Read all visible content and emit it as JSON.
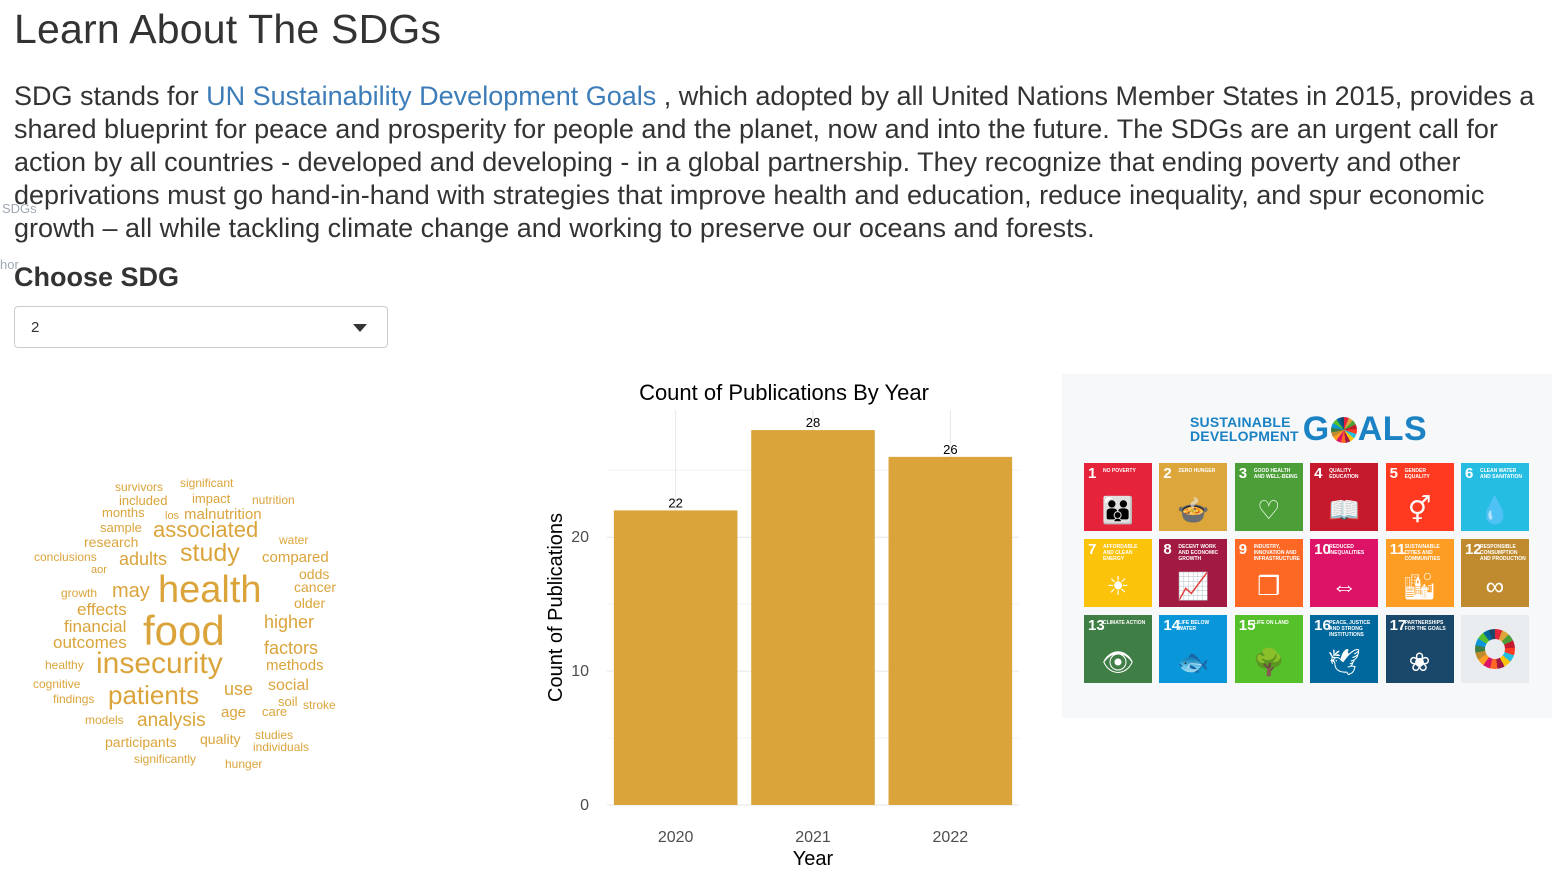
{
  "page": {
    "title": "Learn About The SDGs",
    "intro_prefix": "SDG stands for ",
    "intro_link": "UN Sustainability Development Goals",
    "intro_rest": " , which adopted by all United Nations Member States in 2015, provides a shared blueprint for peace and prosperity for people and the planet, now and into the future. The SDGs are an urgent call for action by all countries - developed and developing - in a global partnership. They recognize that ending poverty and other deprivations must go hand-in-hand with strategies that improve health and education, reduce inequality, and spur economic growth – all while tackling climate change and working to preserve our oceans and forests.",
    "ghost_text_1": "SDGs",
    "ghost_text_2": "hor"
  },
  "control": {
    "label": "Choose SDG",
    "selected": "2"
  },
  "wordcloud": {
    "color": "#dba43b",
    "words": [
      {
        "text": "food",
        "weight": 42
      },
      {
        "text": "health",
        "weight": 38
      },
      {
        "text": "insecurity",
        "weight": 30
      },
      {
        "text": "patients",
        "weight": 26
      },
      {
        "text": "study",
        "weight": 25
      },
      {
        "text": "associated",
        "weight": 22
      },
      {
        "text": "may",
        "weight": 20
      },
      {
        "text": "analysis",
        "weight": 19
      },
      {
        "text": "adults",
        "weight": 18
      },
      {
        "text": "factors",
        "weight": 18
      },
      {
        "text": "higher",
        "weight": 18
      },
      {
        "text": "use",
        "weight": 18
      },
      {
        "text": "financial",
        "weight": 17
      },
      {
        "text": "outcomes",
        "weight": 17
      },
      {
        "text": "effects",
        "weight": 17
      },
      {
        "text": "social",
        "weight": 16
      },
      {
        "text": "malnutrition",
        "weight": 15
      },
      {
        "text": "methods",
        "weight": 15
      },
      {
        "text": "compared",
        "weight": 15
      },
      {
        "text": "older",
        "weight": 14
      },
      {
        "text": "cancer",
        "weight": 14
      },
      {
        "text": "odds",
        "weight": 14
      },
      {
        "text": "participants",
        "weight": 14
      },
      {
        "text": "quality",
        "weight": 14
      },
      {
        "text": "age",
        "weight": 15
      },
      {
        "text": "care",
        "weight": 13
      },
      {
        "text": "soil",
        "weight": 13
      },
      {
        "text": "research",
        "weight": 14
      },
      {
        "text": "sample",
        "weight": 13
      },
      {
        "text": "impact",
        "weight": 13
      },
      {
        "text": "months",
        "weight": 13
      },
      {
        "text": "included",
        "weight": 13
      },
      {
        "text": "survivors",
        "weight": 12
      },
      {
        "text": "significant",
        "weight": 12
      },
      {
        "text": "nutrition",
        "weight": 12
      },
      {
        "text": "water",
        "weight": 12
      },
      {
        "text": "conclusions",
        "weight": 12
      },
      {
        "text": "aor",
        "weight": 11
      },
      {
        "text": "growth",
        "weight": 12
      },
      {
        "text": "healthy",
        "weight": 12
      },
      {
        "text": "cognitive",
        "weight": 12
      },
      {
        "text": "findings",
        "weight": 12
      },
      {
        "text": "models",
        "weight": 12
      },
      {
        "text": "studies",
        "weight": 12
      },
      {
        "text": "individuals",
        "weight": 12
      },
      {
        "text": "stroke",
        "weight": 12
      },
      {
        "text": "significantly",
        "weight": 12
      },
      {
        "text": "hunger",
        "weight": 12
      },
      {
        "text": "los",
        "weight": 11
      }
    ]
  },
  "chart_data": {
    "type": "bar",
    "title": "Count of Publications By Year",
    "xlabel": "Year",
    "ylabel": "Count of Publications",
    "categories": [
      "2020",
      "2021",
      "2022"
    ],
    "values": [
      22,
      28,
      26
    ],
    "data_labels": [
      "22",
      "28",
      "26"
    ],
    "ylim": [
      0,
      29.5
    ],
    "y_ticks": [
      0,
      10,
      20
    ],
    "grid": true,
    "bar_color": "#dba43b"
  },
  "sdg_panel": {
    "logo_small_line1": "SUSTAINABLE",
    "logo_small_line2": "DEVELOPMENT",
    "logo_big_pre": "G",
    "logo_big_post": "ALS",
    "goals": [
      {
        "num": "1",
        "label": "No poverty",
        "color": "#e5243b",
        "icon": "family-icon",
        "glyph": "👪"
      },
      {
        "num": "2",
        "label": "Zero hunger",
        "color": "#dda63a",
        "icon": "bowl-icon",
        "glyph": "🍲"
      },
      {
        "num": "3",
        "label": "Good health and well-being",
        "color": "#4c9f38",
        "icon": "heartbeat-icon",
        "glyph": "♡"
      },
      {
        "num": "4",
        "label": "Quality education",
        "color": "#c5192d",
        "icon": "book-icon",
        "glyph": "📖"
      },
      {
        "num": "5",
        "label": "Gender equality",
        "color": "#ff3a21",
        "icon": "gender-icon",
        "glyph": "⚥"
      },
      {
        "num": "6",
        "label": "Clean water and sanitation",
        "color": "#26bde2",
        "icon": "water-drop-icon",
        "glyph": "💧"
      },
      {
        "num": "7",
        "label": "Affordable and clean energy",
        "color": "#fcc30b",
        "icon": "sun-icon",
        "glyph": "☀"
      },
      {
        "num": "8",
        "label": "Decent work and economic growth",
        "color": "#a21942",
        "icon": "growth-chart-icon",
        "glyph": "📈"
      },
      {
        "num": "9",
        "label": "Industry, innovation and infrastructure",
        "color": "#fd6925",
        "icon": "cubes-icon",
        "glyph": "❒"
      },
      {
        "num": "10",
        "label": "Reduced inequalities",
        "color": "#dd1367",
        "icon": "equal-icon",
        "glyph": "⇔"
      },
      {
        "num": "11",
        "label": "Sustainable cities and communities",
        "color": "#fd9d24",
        "icon": "city-icon",
        "glyph": "🏙"
      },
      {
        "num": "12",
        "label": "Responsible consumption and production",
        "color": "#bf8b2e",
        "icon": "infinity-icon",
        "glyph": "∞"
      },
      {
        "num": "13",
        "label": "Climate action",
        "color": "#3f7e44",
        "icon": "eye-globe-icon",
        "glyph": "👁"
      },
      {
        "num": "14",
        "label": "Life below water",
        "color": "#0a97d9",
        "icon": "fish-icon",
        "glyph": "🐟"
      },
      {
        "num": "15",
        "label": "Life on land",
        "color": "#56c02b",
        "icon": "tree-icon",
        "glyph": "🌳"
      },
      {
        "num": "16",
        "label": "Peace, justice and strong institutions",
        "color": "#00689d",
        "icon": "dove-icon",
        "glyph": "🕊"
      },
      {
        "num": "17",
        "label": "Partnerships for the goals",
        "color": "#19486a",
        "icon": "rings-icon",
        "glyph": "❀"
      }
    ]
  }
}
